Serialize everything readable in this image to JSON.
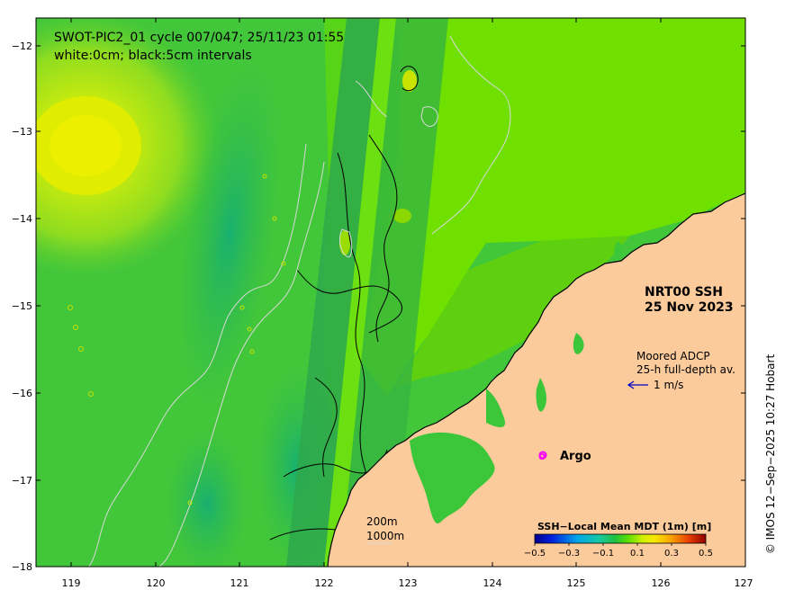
{
  "title": {
    "line1": "SWOT-PIC2_01 cycle 007/047; 25/11/23 01:55",
    "line2": "white:0cm; black:5cm intervals"
  },
  "axes": {
    "x_ticks": [
      "119",
      "120",
      "121",
      "122",
      "123",
      "124",
      "125",
      "126",
      "127"
    ],
    "y_ticks": [
      "−12",
      "−13",
      "−14",
      "−15",
      "−16",
      "−17",
      "−18"
    ]
  },
  "product": {
    "line1": "NRT00 SSH",
    "line2": "25 Nov 2023"
  },
  "adcp": {
    "line1": "Moored ADCP",
    "line2": "25-h full-depth av.",
    "scale_label": "1 m/s"
  },
  "argo": {
    "marker": "o",
    "label": "Argo"
  },
  "depth_legend": {
    "line1": "200m",
    "line2": "1000m"
  },
  "colorbar": {
    "title": "SSH−Local Mean MDT (1m) [m]",
    "ticks": [
      "−0.5",
      "−0.3",
      "−0.1",
      "0.1",
      "0.3",
      "0.5"
    ],
    "colors": [
      "#00008c",
      "#0020e0",
      "#00a8e8",
      "#18c8a0",
      "#10c040",
      "#40e000",
      "#c0f000",
      "#f0f000",
      "#f8b000",
      "#f06000",
      "#d02000",
      "#900000"
    ]
  },
  "credit": "© IMOS 12−Sep−2025 10:27 Hobart",
  "palette": {
    "land": "#fccb9c",
    "ocean_mid": "#3ec83c",
    "ocean_warm": "#c8e800",
    "ocean_cool": "#18b068",
    "swath": "#2aa050",
    "argo": "#ff00ff",
    "arrow": "#0000c8"
  }
}
